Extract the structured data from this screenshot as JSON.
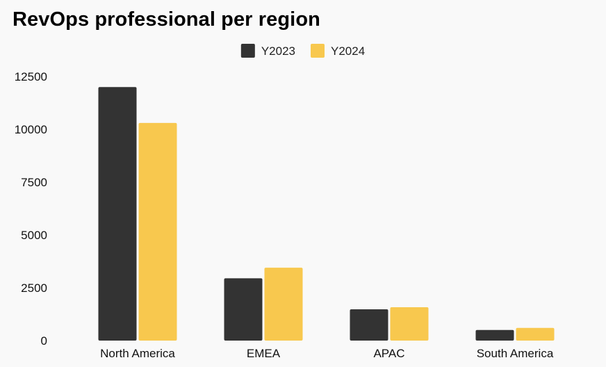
{
  "chart_data": {
    "type": "bar",
    "title": "RevOps professional per region",
    "categories": [
      "North America",
      "EMEA",
      "APAC",
      "South America"
    ],
    "series": [
      {
        "name": "Y2023",
        "values": [
          12000,
          2950,
          1480,
          500
        ],
        "color": "#333333"
      },
      {
        "name": "Y2024",
        "values": [
          10300,
          3450,
          1580,
          600
        ],
        "color": "#f8c84e"
      }
    ],
    "yticks": [
      0,
      2500,
      5000,
      7500,
      10000,
      12500
    ],
    "ylim": [
      0,
      12500
    ],
    "grid": false,
    "legend_position": "top-center",
    "xlabel": "",
    "ylabel": ""
  }
}
